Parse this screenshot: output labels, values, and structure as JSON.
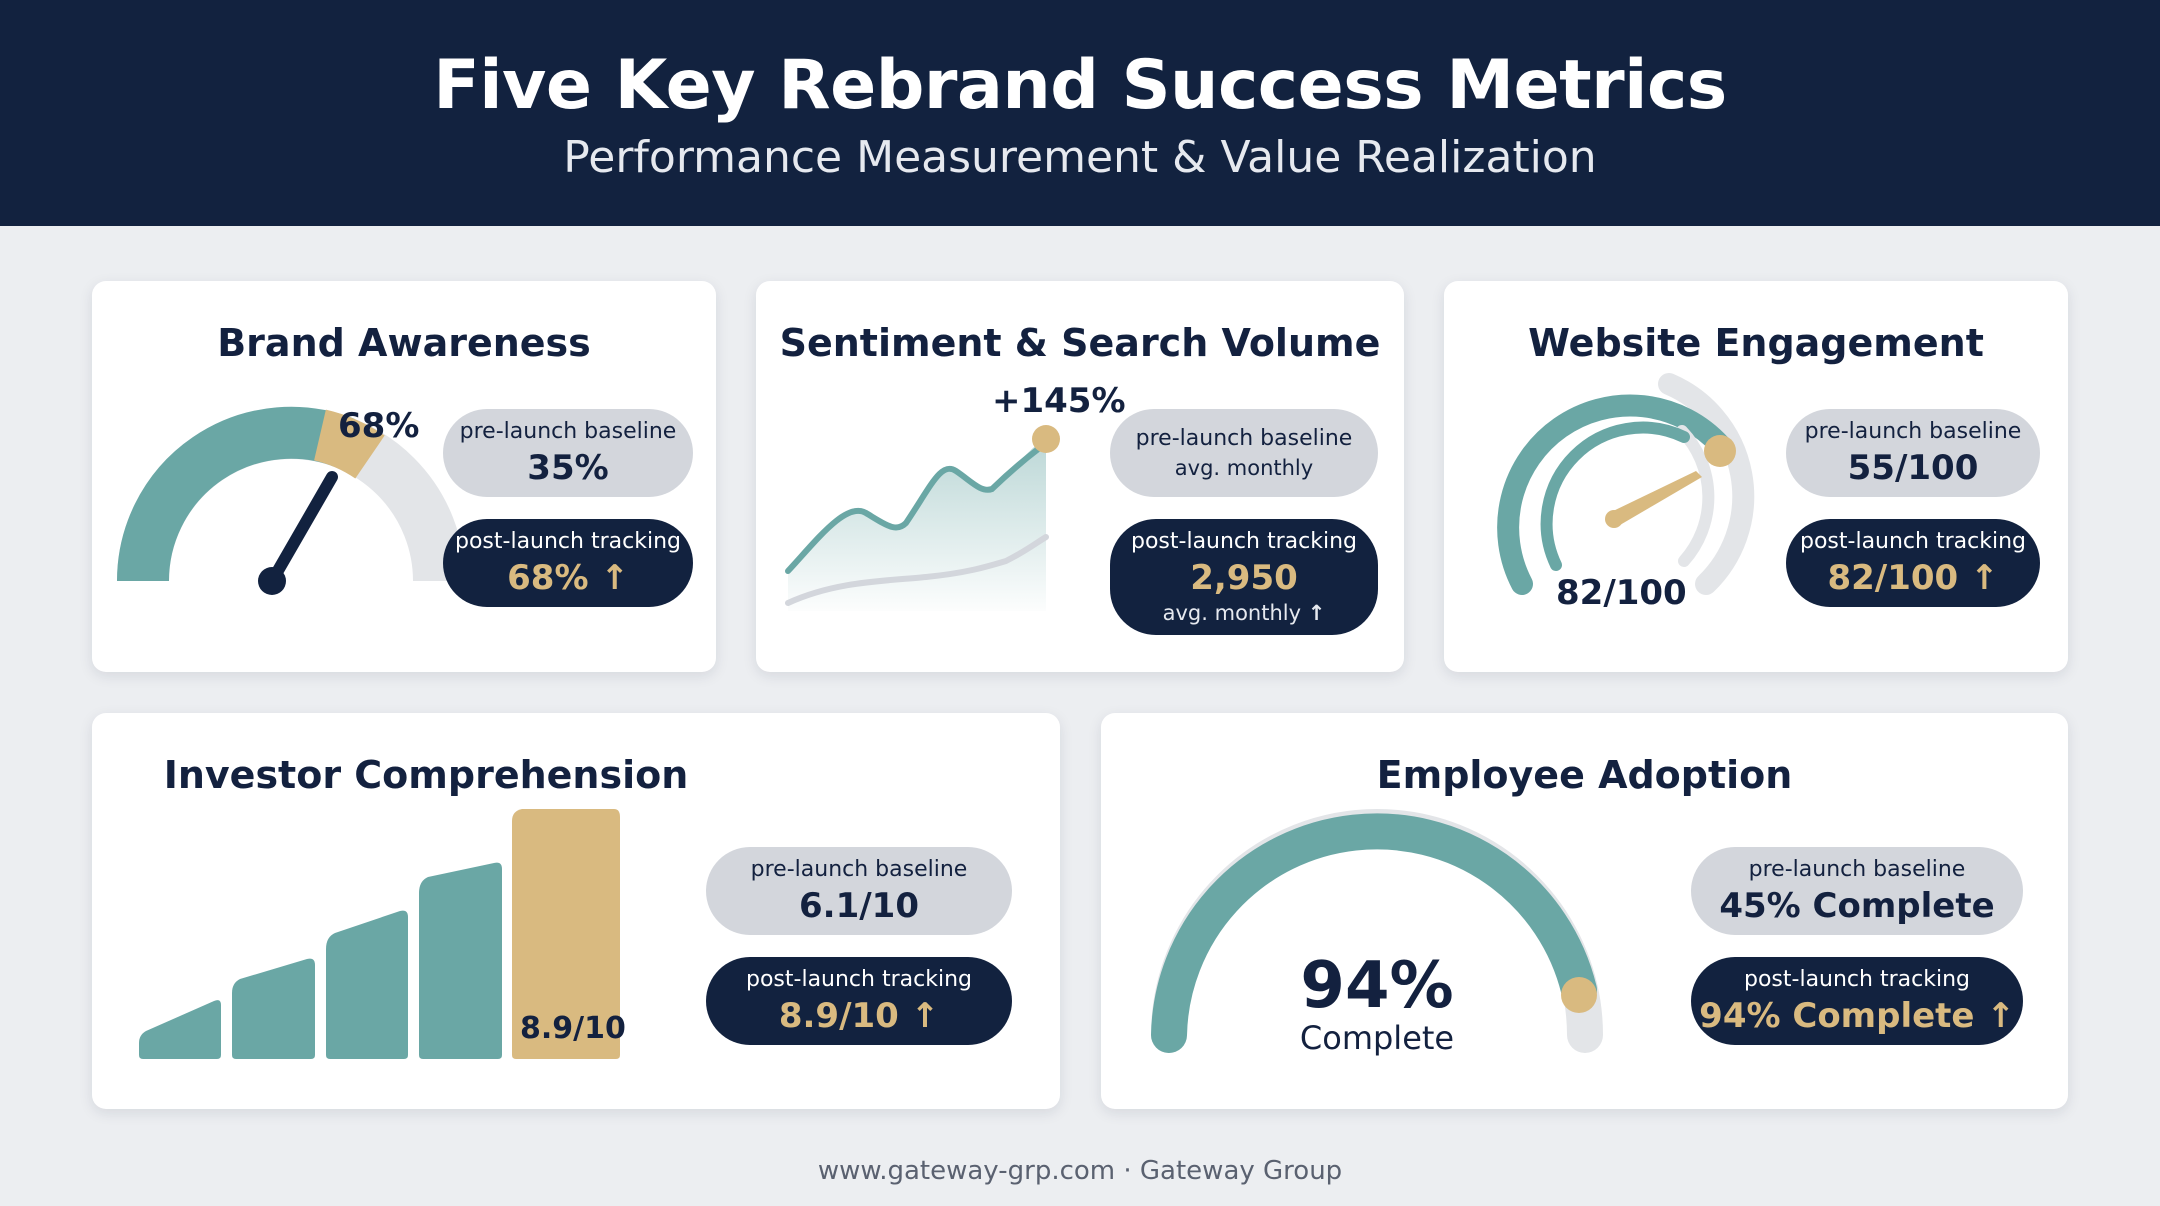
{
  "header": {
    "title": "Five Key Rebrand Success Metrics",
    "subtitle": "Performance Measurement & Value Realization"
  },
  "colors": {
    "navy": "#12223f",
    "teal": "#6aa7a5",
    "gold": "#d9ba80",
    "grey": "#e3e5e8",
    "pill_grey": "#d3d6dc"
  },
  "cards": {
    "brand_awareness": {
      "title": "Brand Awareness",
      "gauge_value": 0.68,
      "gauge_label": "68%",
      "baseline_label": "pre-launch baseline",
      "baseline_value": "35%",
      "post_label": "post-launch tracking",
      "post_value": "68%",
      "post_arrow": "↑"
    },
    "sentiment": {
      "title": "Sentiment & Search Volume",
      "change_label": "+145%",
      "baseline_label": "pre-launch baseline",
      "baseline_note": "avg. monthly",
      "post_label": "post-launch tracking",
      "post_value": "2,950",
      "post_note": "avg. monthly",
      "post_arrow": "↑"
    },
    "website": {
      "title": "Website Engagement",
      "gauge_value": 82,
      "gauge_max": 100,
      "gauge_label": "82/100",
      "baseline_label": "pre-launch baseline",
      "baseline_value": "55/100",
      "post_label": "post-launch tracking",
      "post_value": "82/100",
      "post_arrow": "↑"
    },
    "investor": {
      "title": "Investor Comprehension",
      "final_bar_label": "8.9/10",
      "baseline_label": "pre-launch baseline",
      "baseline_value": "6.1/10",
      "post_label": "post-launch tracking",
      "post_value": "8.9/10",
      "post_arrow": "↑"
    },
    "employee": {
      "title": "Employee Adoption",
      "gauge_value": 0.94,
      "gauge_percent": "94%",
      "gauge_word": "Complete",
      "baseline_label": "pre-launch baseline",
      "baseline_value": "45% Complete",
      "post_label": "post-launch tracking",
      "post_value": "94% Complete",
      "post_arrow": "↑"
    }
  },
  "footer": {
    "text": "www.gateway-grp.com · Gateway Group"
  }
}
